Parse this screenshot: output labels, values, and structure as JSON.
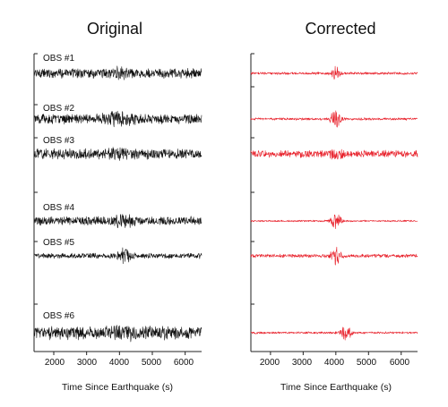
{
  "chart_data": [
    {
      "type": "line",
      "title": "Original",
      "xlabel": "Time Since Earthquake (s)",
      "ylabel": "",
      "xlim": [
        1400,
        6500
      ],
      "x_ticks": [
        2000,
        3000,
        4000,
        5000,
        6000
      ],
      "x_tick_labels": [
        "2000",
        "3000",
        "4000",
        "5000",
        "6000"
      ],
      "grid": false,
      "color": "#111111",
      "series": [
        {
          "name": "OBS #1",
          "baseline_noise": 0.55,
          "events": [
            {
              "t": 4050,
              "amp": 0.35,
              "width": 220
            }
          ]
        },
        {
          "name": "OBS #2",
          "baseline_noise": 0.55,
          "events": [
            {
              "t": 4000,
              "amp": 0.45,
              "width": 400
            }
          ]
        },
        {
          "name": "OBS #3",
          "baseline_noise": 0.6,
          "events": [
            {
              "t": 4100,
              "amp": 0.35,
              "width": 300
            }
          ]
        },
        {
          "name": "OBS #4",
          "baseline_noise": 0.5,
          "events": [
            {
              "t": 4100,
              "amp": 0.55,
              "width": 260
            }
          ]
        },
        {
          "name": "OBS #5",
          "baseline_noise": 0.3,
          "events": [
            {
              "t": 4150,
              "amp": 0.75,
              "width": 180
            }
          ]
        },
        {
          "name": "OBS #6",
          "baseline_noise": 0.75,
          "events": [
            {
              "t": 4250,
              "amp": 0.25,
              "width": 400
            }
          ]
        }
      ]
    },
    {
      "type": "line",
      "title": "Corrected",
      "xlabel": "Time Since Earthquake (s)",
      "ylabel": "",
      "xlim": [
        1400,
        6500
      ],
      "x_ticks": [
        2000,
        3000,
        4000,
        5000,
        6000
      ],
      "x_tick_labels": [
        "2000",
        "3000",
        "4000",
        "5000",
        "6000"
      ],
      "grid": false,
      "color": "#e8202a",
      "series": [
        {
          "name": "OBS #1",
          "baseline_noise": 0.14,
          "events": [
            {
              "t": 4000,
              "amp": 0.85,
              "width": 130
            }
          ]
        },
        {
          "name": "OBS #2",
          "baseline_noise": 0.14,
          "events": [
            {
              "t": 4000,
              "amp": 1.0,
              "width": 150
            }
          ]
        },
        {
          "name": "OBS #3",
          "baseline_noise": 0.4,
          "events": [
            {
              "t": 4000,
              "amp": 0.5,
              "width": 200
            }
          ]
        },
        {
          "name": "OBS #4",
          "baseline_noise": 0.1,
          "events": [
            {
              "t": 4000,
              "amp": 1.0,
              "width": 150
            }
          ]
        },
        {
          "name": "OBS #5",
          "baseline_noise": 0.2,
          "events": [
            {
              "t": 4000,
              "amp": 0.8,
              "width": 150
            }
          ]
        },
        {
          "name": "OBS #6",
          "baseline_noise": 0.12,
          "events": [
            {
              "t": 4300,
              "amp": 0.95,
              "width": 160
            }
          ]
        }
      ]
    }
  ]
}
